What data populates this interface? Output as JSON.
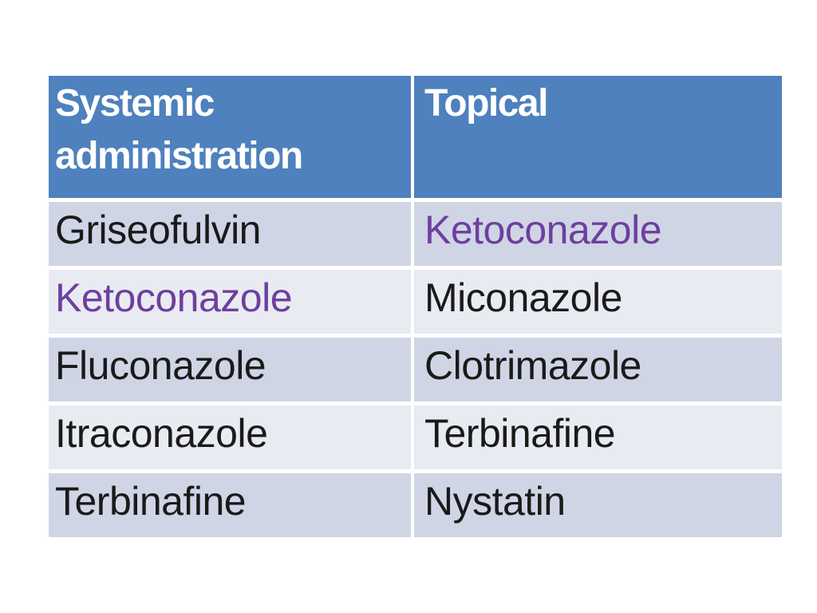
{
  "table": {
    "header": {
      "col1": "Systemic administration",
      "col2": "Topical"
    },
    "rows": [
      {
        "col1": {
          "text": "Griseofulvin",
          "purple": false
        },
        "col2": {
          "text": "Ketoconazole",
          "purple": true
        }
      },
      {
        "col1": {
          "text": "Ketoconazole",
          "purple": true
        },
        "col2": {
          "text": "Miconazole",
          "purple": false
        }
      },
      {
        "col1": {
          "text": "Fluconazole",
          "purple": false
        },
        "col2": {
          "text": "Clotrimazole",
          "purple": false
        }
      },
      {
        "col1": {
          "text": "Itraconazole",
          "purple": false
        },
        "col2": {
          "text": "Terbinafine",
          "purple": false
        }
      },
      {
        "col1": {
          "text": "Terbinafine",
          "purple": false
        },
        "col2": {
          "text": "Nystatin",
          "purple": false
        }
      }
    ],
    "colors": {
      "header_bg": "#4E81BD",
      "band_dark": "#CFD5E5",
      "band_light": "#E9EBF2",
      "header_text": "#FFFFFF",
      "body_text": "#1A1A1A",
      "highlight_text": "#6E3F9E",
      "border": "#FFFFFF",
      "page_bg": "#FFFFFF"
    }
  }
}
